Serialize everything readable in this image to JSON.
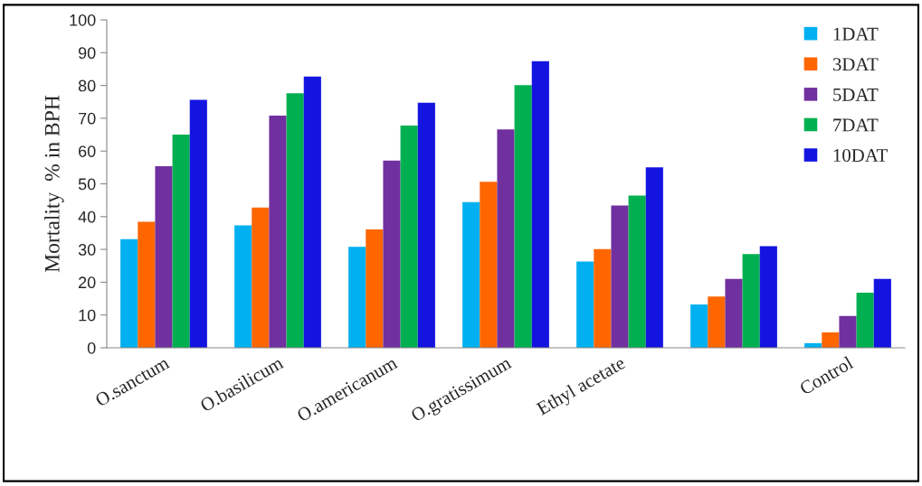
{
  "chart_data": {
    "type": "bar",
    "ylabel": "Mortality  % in BPH",
    "categories": [
      "O.sanctum",
      "O.basilicum",
      "O.americanum",
      "O.gratissimum",
      "Ethyl acetate",
      null,
      "Control"
    ],
    "series": [
      {
        "name": "1DAT",
        "color": "#00b0f0",
        "values": [
          33.1,
          37.3,
          30.8,
          44.4,
          26.3,
          13.2,
          1.4
        ]
      },
      {
        "name": "3DAT",
        "color": "#ff6600",
        "values": [
          38.4,
          42.8,
          36.1,
          50.6,
          30.1,
          15.6,
          4.7
        ]
      },
      {
        "name": "5DAT",
        "color": "#7030a0",
        "values": [
          55.4,
          70.8,
          57.1,
          66.6,
          43.4,
          21.0,
          9.7
        ]
      },
      {
        "name": "7DAT",
        "color": "#00b050",
        "values": [
          65.0,
          77.6,
          67.8,
          80.1,
          46.4,
          28.6,
          16.8
        ]
      },
      {
        "name": "10DAT",
        "color": "#1414e0",
        "values": [
          75.6,
          82.7,
          74.7,
          87.4,
          55.0,
          31.0,
          21.0
        ]
      }
    ],
    "ylim": [
      0,
      100
    ],
    "yticks": [
      0,
      10,
      20,
      30,
      40,
      50,
      60,
      70,
      80,
      90,
      100
    ],
    "grid": false,
    "legend": "top right"
  }
}
